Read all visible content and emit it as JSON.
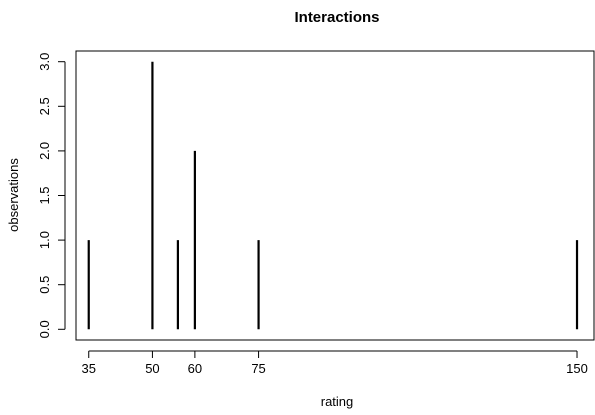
{
  "chart_data": {
    "type": "bar",
    "title": "Interactions",
    "xlabel": "rating",
    "ylabel": "observations",
    "x": [
      35,
      50,
      56,
      60,
      75,
      150
    ],
    "values": [
      1,
      3,
      1,
      2,
      1,
      1
    ],
    "x_ticks": [
      35,
      50,
      60,
      75,
      150
    ],
    "x_tick_labels": [
      "35",
      "50",
      "60",
      "75",
      "150"
    ],
    "y_ticks": [
      0,
      0.5,
      1,
      1.5,
      2,
      2.5,
      3
    ],
    "y_tick_labels": [
      "0.0",
      "0.5",
      "1.0",
      "1.5",
      "2.0",
      "2.5",
      "3.0"
    ],
    "xlim": [
      32,
      154
    ],
    "ylim": [
      -0.12,
      3.12
    ],
    "grid": false,
    "legend": "none",
    "colors": {
      "bar": "#000000",
      "axis": "#000000",
      "background": "#ffffff"
    }
  }
}
